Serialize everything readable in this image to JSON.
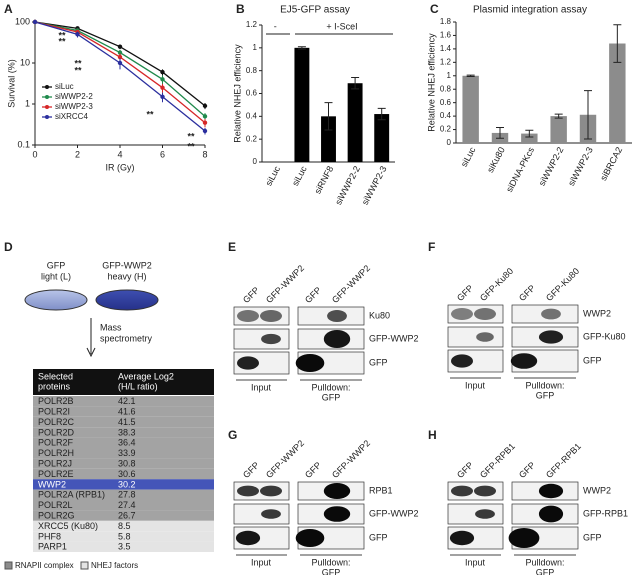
{
  "panel_letters": [
    "A",
    "B",
    "C",
    "D",
    "E",
    "F",
    "G",
    "H"
  ],
  "chart_data": [
    {
      "type": "line",
      "x_label": "IR (Gy)",
      "y_label": "Survival (%)",
      "x": [
        0,
        2,
        4,
        6,
        8
      ],
      "xlim": [
        0,
        8
      ],
      "xticks": [
        0,
        2,
        4,
        6,
        8
      ],
      "ylim": [
        0.1,
        100
      ],
      "yticks": [
        0.1,
        1,
        10,
        100
      ],
      "log_y": true,
      "legend": "lower left",
      "series": [
        {
          "name": "siLuc",
          "color": "#111111",
          "values": [
            100,
            70,
            25,
            6,
            0.9
          ],
          "errors": [
            0,
            5,
            3,
            1,
            0.15
          ]
        },
        {
          "name": "siWWP2-2",
          "color": "#1f8a4c",
          "values": [
            100,
            62,
            18,
            4,
            0.5
          ],
          "errors": [
            0,
            5,
            3,
            1,
            0.1
          ]
        },
        {
          "name": "siWWP2-3",
          "color": "#d62728",
          "values": [
            100,
            57,
            14,
            2.5,
            0.35
          ],
          "errors": [
            0,
            5,
            3,
            0.6,
            0.08
          ]
        },
        {
          "name": "siXRCC4",
          "color": "#2b2f9e",
          "values": [
            100,
            50,
            10,
            1.5,
            0.22
          ],
          "errors": [
            0,
            8,
            3,
            0.4,
            0.04
          ]
        }
      ],
      "annotations": [
        "**",
        "**",
        "**",
        "**",
        "**",
        "**",
        "**"
      ]
    },
    {
      "type": "bar",
      "title": "EJ5-GFP assay",
      "y_label": "Relative NHEJ efficiency",
      "group_labels": [
        "-",
        "+ I-SceI"
      ],
      "categories": [
        "siLuc",
        "siLuc",
        "siRNF8",
        "siWWP2-2",
        "siWWP2-3"
      ],
      "values": [
        0,
        1.0,
        0.4,
        0.69,
        0.42
      ],
      "errors": [
        0,
        0.01,
        0.12,
        0.05,
        0.05
      ],
      "color": "#000000",
      "ylim": [
        0,
        1.2
      ],
      "yticks": [
        0,
        0.2,
        0.4,
        0.6,
        0.8,
        1,
        1.2
      ]
    },
    {
      "type": "bar",
      "title": "Plasmid integration assay",
      "y_label": "Relative NHEJ efficiency",
      "categories": [
        "siLuc",
        "siKu80",
        "siDNA-PKcs",
        "siWWP2-2",
        "siWWP2-3",
        "siBRCA2"
      ],
      "values": [
        1.0,
        0.15,
        0.14,
        0.4,
        0.42,
        1.48
      ],
      "errors": [
        0.01,
        0.08,
        0.05,
        0.03,
        0.36,
        0.28
      ],
      "color": "#8c8c8c",
      "ylim": [
        0,
        1.8
      ],
      "yticks": [
        0,
        0.2,
        0.4,
        0.6,
        0.8,
        1,
        1.2,
        1.4,
        1.6,
        1.8
      ]
    }
  ],
  "mass_spec": {
    "dish_labels": [
      [
        "GFP",
        "light (L)"
      ],
      [
        "GFP-WWP2",
        "heavy (H)"
      ]
    ],
    "arrow_label": [
      "Mass",
      "spectrometry"
    ],
    "header": [
      [
        "Selected",
        "proteins"
      ],
      [
        "Average Log2",
        "(H/L ratio)"
      ]
    ],
    "rows": [
      [
        "POLR2B",
        42.1
      ],
      [
        "POLR2I",
        41.6
      ],
      [
        "POLR2C",
        41.5
      ],
      [
        "POLR2D",
        38.3
      ],
      [
        "POLR2F",
        36.4
      ],
      [
        "POLR2H",
        33.9
      ],
      [
        "POLR2J",
        30.8
      ],
      [
        "POLR2E",
        30.6
      ],
      [
        "WWP2",
        30.2
      ],
      [
        "POLR2A (RPB1)",
        27.8
      ],
      [
        "POLR2L",
        27.4
      ],
      [
        "POLR2G",
        26.7
      ],
      [
        "XRCC5 (Ku80)",
        8.5
      ],
      [
        "PHF8",
        5.8
      ],
      [
        "PARP1",
        3.5
      ]
    ],
    "legend": [
      "RNAPII complex",
      "NHEJ factors"
    ]
  },
  "blots": [
    {
      "lanes": [
        "GFP",
        "GFP-WWP2",
        "GFP",
        "GFP-WWP2"
      ],
      "rows": [
        "Ku80",
        "GFP-WWP2",
        "GFP"
      ],
      "input_label": "Input",
      "pulldown_label": [
        "Pulldown:",
        "GFP"
      ]
    },
    {
      "lanes": [
        "GFP",
        "GFP-Ku80",
        "GFP",
        "GFP-Ku80"
      ],
      "rows": [
        "WWP2",
        "GFP-Ku80",
        "GFP"
      ],
      "input_label": "Input",
      "pulldown_label": [
        "Pulldown:",
        "GFP"
      ]
    },
    {
      "lanes": [
        "GFP",
        "GFP-WWP2",
        "GFP",
        "GFP-WWP2"
      ],
      "rows": [
        "RPB1",
        "GFP-WWP2",
        "GFP"
      ],
      "input_label": "Input",
      "pulldown_label": [
        "Pulldown:",
        "GFP"
      ]
    },
    {
      "lanes": [
        "GFP",
        "GFP-RPB1",
        "GFP",
        "GFP-RPB1"
      ],
      "rows": [
        "WWP2",
        "GFP-RPB1",
        "GFP"
      ],
      "input_label": "Input",
      "pulldown_label": [
        "Pulldown:",
        "GFP"
      ]
    }
  ]
}
